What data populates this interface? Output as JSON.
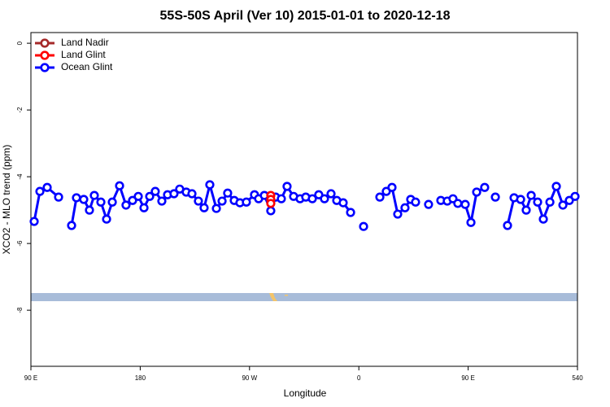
{
  "chart_data": {
    "type": "line",
    "title": "55S-50S April (Ver 10)   2015-01-01 to 2020-12-18",
    "x_label": "Longitude",
    "y_label": "XCO2 - MLO trend (ppm)",
    "xlim": [
      90,
      540
    ],
    "ylim": [
      -9.68,
      0.32
    ],
    "xticks": [
      {
        "value": 90,
        "label": "90 E"
      },
      180,
      {
        "value": 270,
        "label": "90 W"
      },
      {
        "value": 360,
        "label": "0"
      },
      {
        "value": 450,
        "label": "90 E"
      },
      540
    ],
    "yticks": [
      0,
      -2,
      -4,
      -6,
      -8
    ],
    "legend": "top-left",
    "series": [
      {
        "name": "Land Nadir",
        "color": "#a52a2a",
        "x": [],
        "values": []
      },
      {
        "name": "Land Glint",
        "color": "#ff0000",
        "x": [
          287.5,
          287.5,
          287.5
        ],
        "values": [
          -4.56,
          -4.68,
          -4.8
        ]
      },
      {
        "name": "Ocean Glint",
        "color": "#0000ff",
        "x": [
          92.7,
          97.4,
          103.4,
          112.8,
          118,
          123.5,
          127.5,
          133.5,
          138.2,
          142.2,
          147.6,
          152.3,
          157,
          163,
          168.3,
          173.7,
          178.4,
          183.1,
          187.8,
          192.4,
          197.8,
          202.5,
          207.8,
          212.5,
          217.9,
          222.6,
          227.9,
          232.6,
          237.3,
          242.7,
          247.4,
          252,
          257.4,
          262.1,
          267.4,
          274.1,
          277.5,
          282.2,
          287.5,
          291.5,
          296.2,
          300.9,
          306.3,
          311.6,
          316.3,
          321.7,
          327,
          331.7,
          337.1,
          341.8,
          347.1,
          353.2,
          358.5,
          363.9,
          370,
          377.3,
          382.6,
          387.3,
          392,
          398,
          402.7,
          406.7,
          412,
          417.4,
          422,
          427.5,
          432.8,
          437.5,
          441.5,
          447.6,
          452.3,
          457,
          463.6,
          468,
          472.4,
          477,
          482.4,
          487.8,
          493.2,
          497.8,
          501.9,
          507.2,
          511.9,
          517.3,
          522.6,
          528,
          533.3,
          538
        ],
        "values": [
          -5.34,
          -4.44,
          -4.32,
          -4.61,
          null,
          -5.46,
          -4.63,
          -4.68,
          -5.0,
          -4.56,
          -4.76,
          -5.27,
          -4.76,
          -4.27,
          -4.85,
          -4.71,
          -4.59,
          -4.93,
          -4.59,
          -4.44,
          -4.73,
          -4.54,
          -4.51,
          -4.37,
          -4.46,
          -4.51,
          -4.73,
          -4.93,
          -4.24,
          -4.95,
          -4.73,
          -4.49,
          -4.71,
          -4.78,
          -4.76,
          -4.54,
          -4.66,
          -4.56,
          -5.02,
          -4.61,
          -4.66,
          -4.29,
          -4.59,
          -4.66,
          -4.61,
          -4.66,
          -4.54,
          -4.66,
          -4.51,
          -4.71,
          -4.78,
          -5.07,
          null,
          -5.49,
          null,
          -4.61,
          -4.44,
          -4.32,
          -5.12,
          -4.93,
          -4.68,
          -4.76,
          null,
          -4.83,
          null,
          -4.71,
          -4.73,
          -4.66,
          -4.8,
          -4.83,
          -5.37,
          -4.46,
          -4.32,
          null,
          -4.61,
          null,
          -5.46,
          -4.63,
          -4.68,
          -5.0,
          -4.56,
          -4.76,
          -5.27,
          -4.76,
          -4.29,
          -4.85,
          -4.71,
          -4.59
        ]
      }
    ]
  }
}
